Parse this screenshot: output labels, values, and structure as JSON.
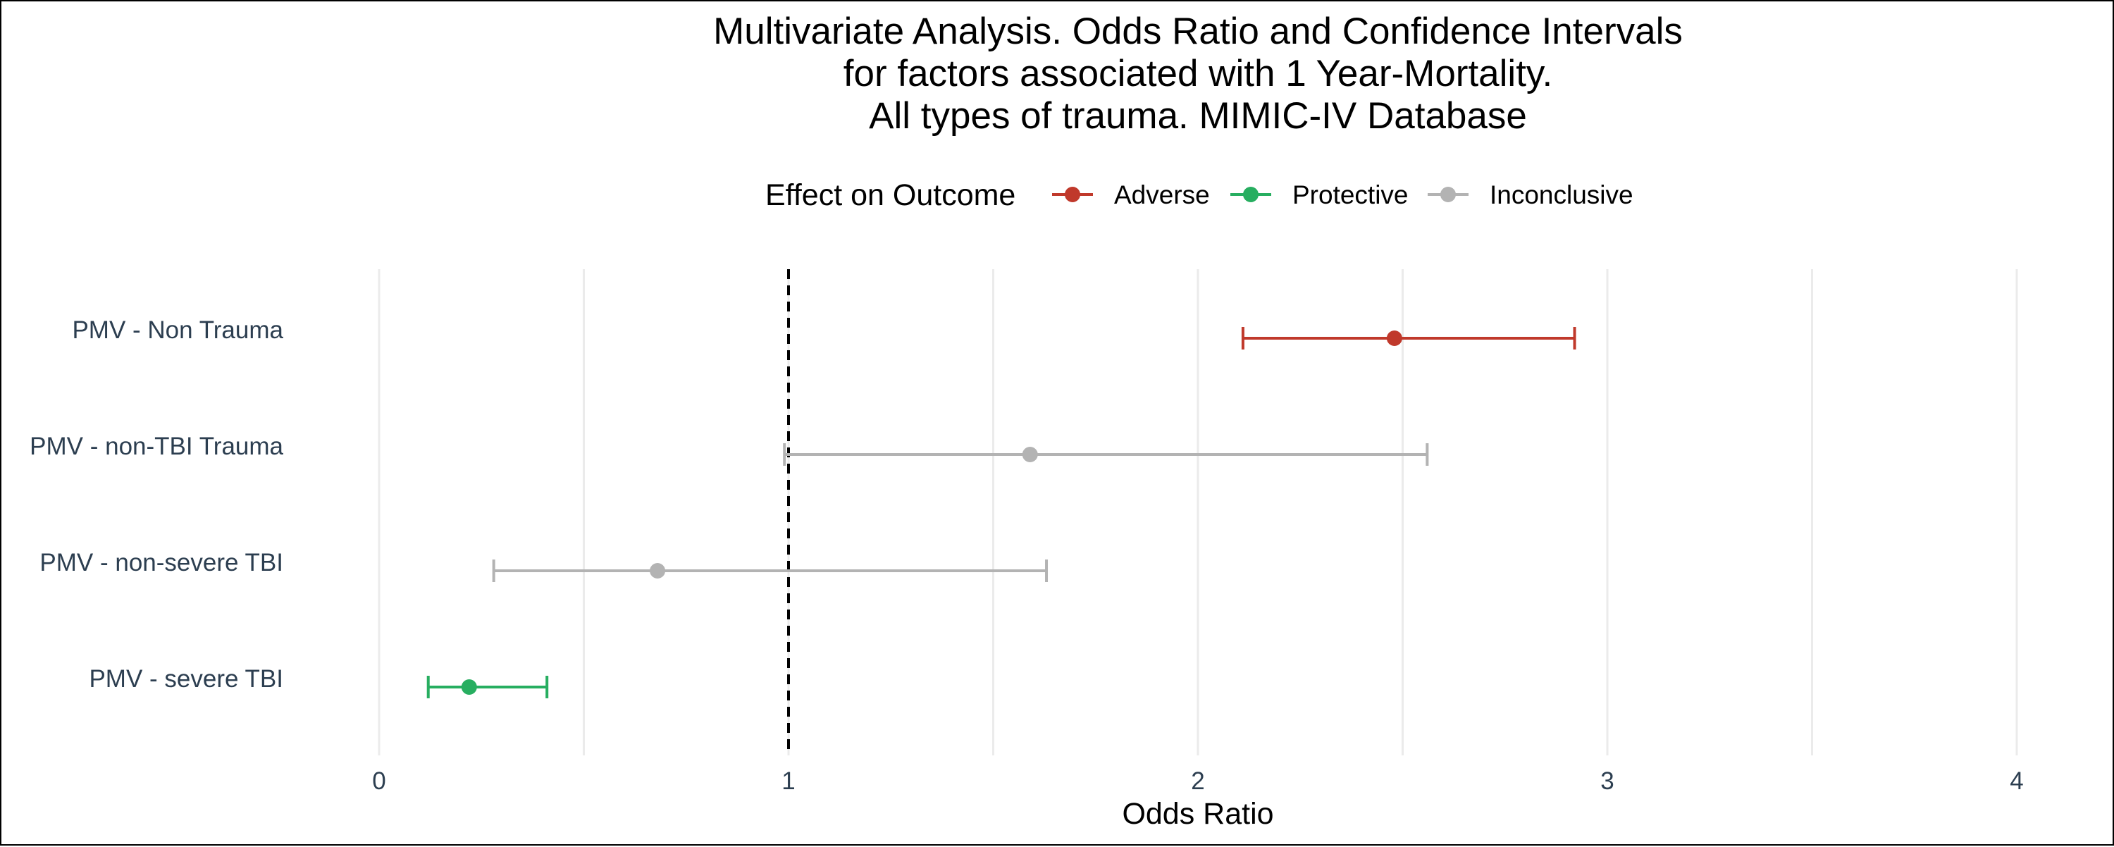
{
  "chart_data": {
    "type": "scatter",
    "subtype": "forest-plot",
    "title_lines": [
      "Multivariate Analysis. Odds Ratio and Confidence Intervals",
      "for factors associated with 1 Year-Mortality.",
      "All types of trauma. MIMIC-IV Database"
    ],
    "legend": {
      "title": "Effect on Outcome",
      "placement": "top-center",
      "entries": [
        {
          "label": "Adverse",
          "color": "#c0392b"
        },
        {
          "label": "Protective",
          "color": "#27ae60"
        },
        {
          "label": "Inconclusive",
          "color": "#b3b3b3"
        }
      ]
    },
    "xlabel": "Odds Ratio",
    "ylabel": "",
    "xlim": [
      0,
      4
    ],
    "x_ticks": [
      0,
      1,
      2,
      3,
      4
    ],
    "x_tick_labels": [
      "0",
      "1",
      "2",
      "3",
      "4"
    ],
    "grid": true,
    "reference_line": {
      "x": 1,
      "style": "dashed",
      "color": "#000000"
    },
    "categories": [
      "PMV - Non Trauma",
      "PMV - non-TBI Trauma",
      "PMV - non-severe TBI",
      "PMV - severe TBI"
    ],
    "series": [
      {
        "category": "PMV - Non Trauma",
        "estimate": 2.48,
        "lower": 2.11,
        "upper": 2.92,
        "effect": "Adverse",
        "color": "#c0392b"
      },
      {
        "category": "PMV - non-TBI Trauma",
        "estimate": 1.59,
        "lower": 0.99,
        "upper": 2.56,
        "effect": "Inconclusive",
        "color": "#b3b3b3"
      },
      {
        "category": "PMV - non-severe TBI",
        "estimate": 0.68,
        "lower": 0.28,
        "upper": 1.63,
        "effect": "Inconclusive",
        "color": "#b3b3b3"
      },
      {
        "category": "PMV - severe TBI",
        "estimate": 0.22,
        "lower": 0.12,
        "upper": 0.41,
        "effect": "Protective",
        "color": "#27ae60"
      }
    ]
  }
}
